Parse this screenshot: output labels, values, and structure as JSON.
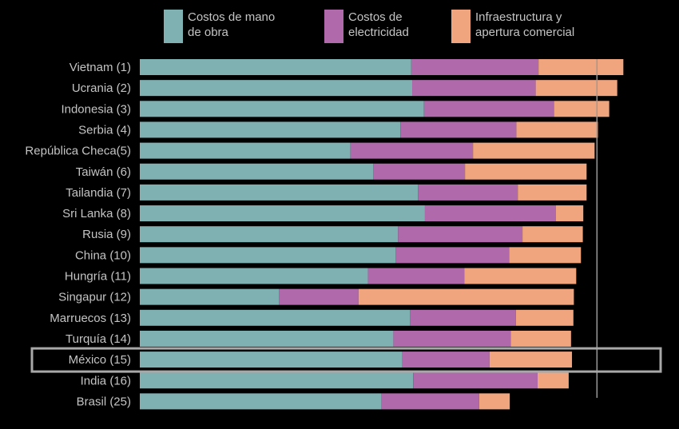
{
  "chart_data": {
    "type": "bar",
    "orientation": "horizontal",
    "stacked": true,
    "categories": [
      "Vietnam (1)",
      "Ucrania (2)",
      "Indonesia (3)",
      "Serbia (4)",
      "República Checa(5)",
      "Taiwán (6)",
      "Tailandia (7)",
      "Sri Lanka (8)",
      "Rusia (9)",
      "China (10)",
      "Hungría (11)",
      "Singapur (12)",
      "Marruecos (13)",
      "Turquía (14)",
      "México (15)",
      "India (16)",
      "Brasil (25)"
    ],
    "series": [
      {
        "name": "Costos de mano de obra",
        "color": "#7fb0b2",
        "values": [
          57.6,
          57.8,
          60.3,
          55.3,
          44.7,
          49.5,
          59.0,
          60.5,
          54.8,
          54.3,
          48.4,
          29.5,
          57.3,
          53.8,
          55.7,
          58.0,
          51.3
        ]
      },
      {
        "name": "Costos de electricidad",
        "color": "#b06aac",
        "values": [
          27.0,
          26.2,
          27.6,
          24.6,
          26.0,
          19.5,
          21.2,
          27.8,
          26.4,
          24.1,
          20.5,
          16.9,
          22.5,
          24.9,
          18.5,
          26.4,
          20.7
        ]
      },
      {
        "name": "Infraestructura y apertura comercial",
        "color": "#f0a57e",
        "values": [
          18.0,
          17.3,
          11.7,
          17.3,
          25.8,
          25.8,
          14.6,
          5.8,
          12.8,
          15.2,
          23.7,
          45.7,
          12.2,
          12.8,
          17.5,
          6.6,
          6.5
        ]
      }
    ],
    "reference_line": 97,
    "highlight": "México (15)",
    "xlim": [
      0,
      115
    ]
  }
}
